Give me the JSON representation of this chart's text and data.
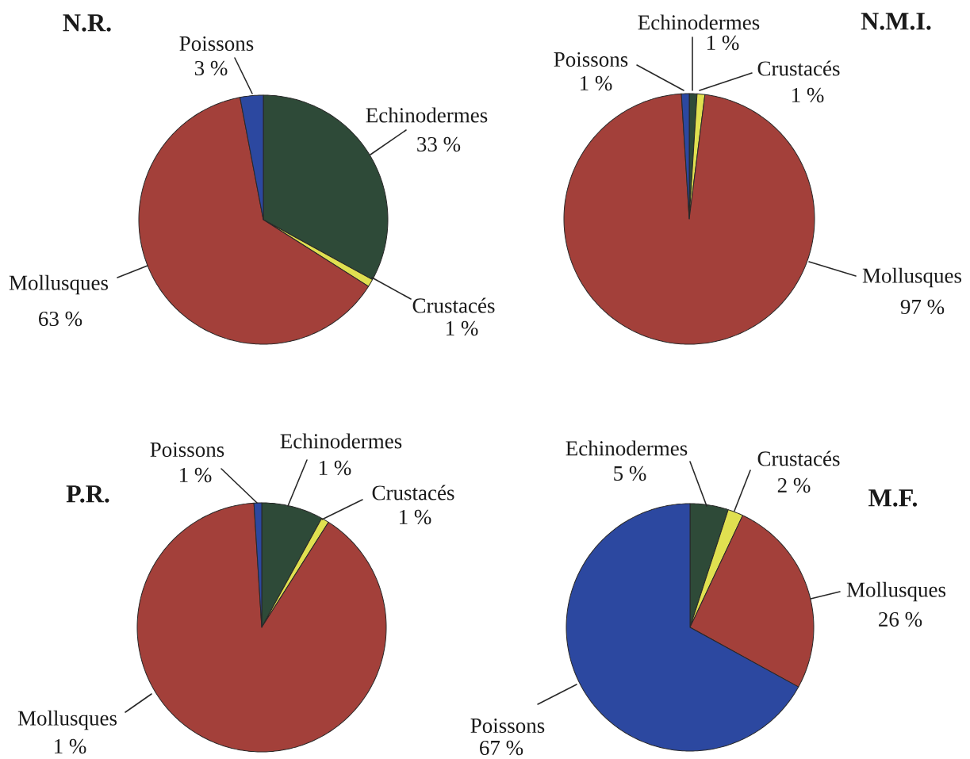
{
  "chart_data": [
    {
      "type": "pie",
      "title": "N.R.",
      "categories": [
        "Echinodermes",
        "Crustacés",
        "Mollusques",
        "Poissons"
      ],
      "values": [
        33,
        1,
        63,
        3
      ],
      "colors": [
        "#2e4a38",
        "#e0e050",
        "#a3403a",
        "#2c48a0"
      ],
      "value_labels": [
        "33 %",
        "1 %",
        "63 %",
        "3 %"
      ]
    },
    {
      "type": "pie",
      "title": "N.M.I.",
      "categories": [
        "Echinodermes",
        "Crustacés",
        "Mollusques",
        "Poissons"
      ],
      "values": [
        1,
        1,
        97,
        1
      ],
      "colors": [
        "#2e4a38",
        "#e0e050",
        "#a3403a",
        "#2c48a0"
      ],
      "value_labels": [
        "1 %",
        "1 %",
        "97 %",
        "1 %"
      ]
    },
    {
      "type": "pie",
      "title": "P.R.",
      "categories": [
        "Echinodermes",
        "Crustacés",
        "Mollusques",
        "Poissons"
      ],
      "values": [
        8,
        1,
        90,
        1
      ],
      "colors": [
        "#2e4a38",
        "#e0e050",
        "#a3403a",
        "#2c48a0"
      ],
      "annotations": [
        "1 %",
        "1 %",
        "1 %",
        "1 %"
      ]
    },
    {
      "type": "pie",
      "title": "M.F.",
      "categories": [
        "Echinodermes",
        "Crustacés",
        "Mollusques",
        "Poissons"
      ],
      "values": [
        5,
        2,
        26,
        67
      ],
      "colors": [
        "#2e4a38",
        "#e0e050",
        "#a3403a",
        "#2c48a0"
      ],
      "value_labels": [
        "5 %",
        "2 %",
        "26 %",
        "67 %"
      ]
    }
  ]
}
